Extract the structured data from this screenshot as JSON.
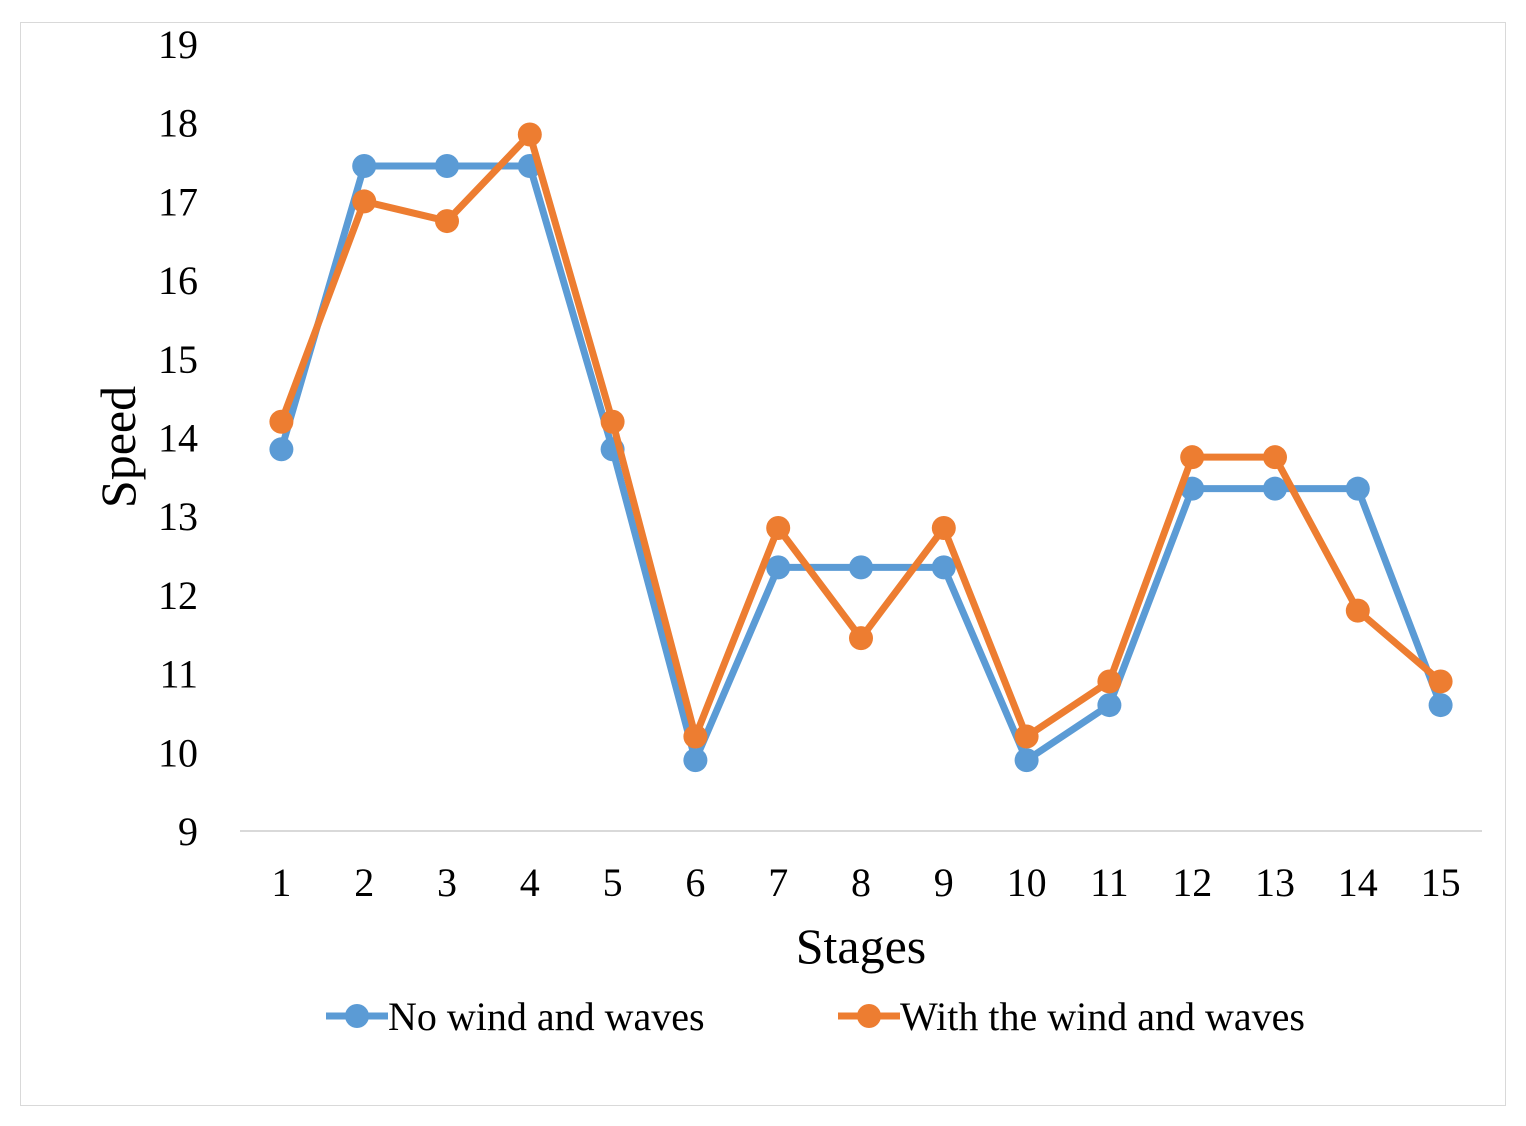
{
  "chart_data": {
    "type": "line",
    "title": "",
    "xlabel": "Stages",
    "ylabel": "Speed",
    "ylim": [
      9,
      19
    ],
    "yticks": [
      9,
      10,
      11,
      12,
      13,
      14,
      15,
      16,
      17,
      18,
      19
    ],
    "categories": [
      "1",
      "2",
      "3",
      "4",
      "5",
      "6",
      "7",
      "8",
      "9",
      "10",
      "11",
      "12",
      "13",
      "14",
      "15"
    ],
    "grid": false,
    "legend_position": "bottom",
    "series": [
      {
        "name": "No wind and waves",
        "color": "#5B9BD5",
        "values": [
          13.85,
          17.45,
          17.45,
          17.45,
          13.85,
          9.9,
          12.35,
          12.35,
          12.35,
          9.9,
          10.6,
          13.35,
          13.35,
          13.35,
          10.6
        ]
      },
      {
        "name": "With the wind and waves",
        "color": "#ED7D31",
        "values": [
          14.2,
          17.0,
          16.75,
          17.85,
          14.2,
          10.2,
          12.85,
          11.45,
          12.85,
          10.2,
          10.9,
          13.75,
          13.75,
          11.8,
          10.9
        ]
      }
    ]
  }
}
